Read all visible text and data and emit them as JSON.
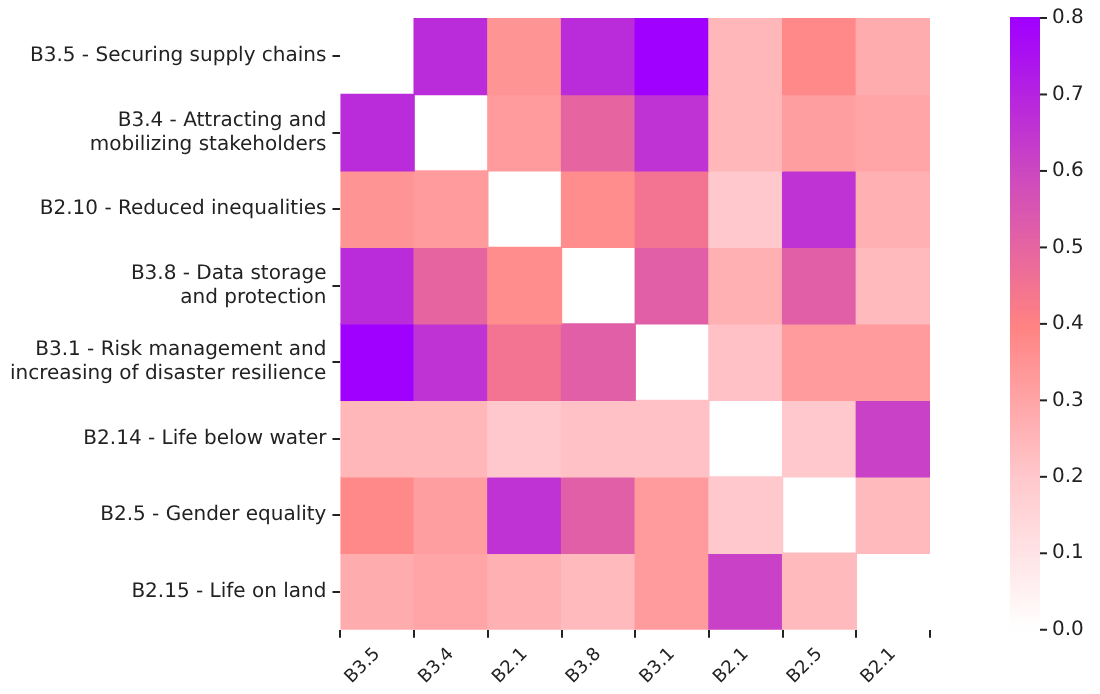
{
  "chart_data": {
    "type": "heatmap",
    "categories": [
      "B3.5",
      "B3.4",
      "B2.1",
      "B3.8",
      "B3.1",
      "B2.1",
      "B2.5",
      "B2.1"
    ],
    "y_categories": [
      "B3.5 - Securing supply chains",
      "B3.4 - Attracting and mobilizing stakeholders",
      "B2.10 - Reduced inequalities",
      "B3.8 - Data storage and protection",
      "B3.1 - Risk management and increasing of disaster resilience",
      "B2.14 - Life below water",
      "B2.5 - Gender equality",
      "B2.15 - Life on land"
    ],
    "cells": [
      [
        null,
        0.68,
        0.35,
        0.68,
        0.8,
        0.25,
        0.38,
        0.28
      ],
      [
        0.68,
        null,
        0.33,
        0.5,
        0.66,
        0.25,
        0.32,
        0.3
      ],
      [
        0.35,
        0.33,
        null,
        0.37,
        0.45,
        0.2,
        0.66,
        0.27
      ],
      [
        0.68,
        0.5,
        0.37,
        null,
        0.52,
        0.27,
        0.52,
        0.24
      ],
      [
        0.8,
        0.66,
        0.45,
        0.52,
        null,
        0.22,
        0.33,
        0.33
      ],
      [
        0.25,
        0.25,
        0.2,
        0.22,
        0.22,
        null,
        0.2,
        0.62
      ],
      [
        0.38,
        0.32,
        0.66,
        0.52,
        0.33,
        0.2,
        null,
        0.24
      ],
      [
        0.28,
        0.3,
        0.27,
        0.24,
        0.33,
        0.62,
        0.24,
        null
      ]
    ],
    "clim": [
      0,
      0.8
    ],
    "cticks": [
      {
        "value": 0,
        "label": "0.0"
      },
      0.1,
      0.2,
      0.3,
      0.4,
      0.5,
      0.6,
      0.7,
      0.8
    ]
  }
}
